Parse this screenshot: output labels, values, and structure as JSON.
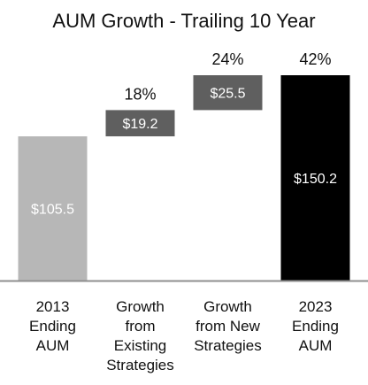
{
  "chart_data": {
    "type": "bar",
    "subtype": "waterfall",
    "title": "AUM Growth - Trailing 10 Year",
    "xlabel": "",
    "ylabel": "",
    "ylim": [
      0,
      150.2
    ],
    "grid": false,
    "legend": "none",
    "categories": [
      "2013 Ending AUM",
      "Growth from Existing Strategies",
      "Growth from New Strategies",
      "2023 Ending AUM"
    ],
    "category_lines": [
      [
        "2013",
        "Ending",
        "AUM"
      ],
      [
        "Growth",
        "from",
        "Existing",
        "Strategies"
      ],
      [
        "Growth",
        "from New",
        "Strategies"
      ],
      [
        "2023",
        "Ending",
        "AUM"
      ]
    ],
    "bars": [
      {
        "kind": "total",
        "start": 0,
        "end": 105.5,
        "value": 105.5,
        "label": "$105.5",
        "pct_label": "",
        "color": "#b7b7b7"
      },
      {
        "kind": "increase",
        "start": 105.5,
        "end": 124.7,
        "value": 19.2,
        "label": "$19.2",
        "pct_label": "18%",
        "color": "#5f5f5f"
      },
      {
        "kind": "increase",
        "start": 124.7,
        "end": 150.2,
        "value": 25.5,
        "label": "$25.5",
        "pct_label": "24%",
        "color": "#5f5f5f"
      },
      {
        "kind": "total",
        "start": 0,
        "end": 150.2,
        "value": 150.2,
        "label": "$150.2",
        "pct_label": "42%",
        "color": "#000000"
      }
    ],
    "colors": {
      "axis": "#8f8f8f",
      "value_label": "#ffffff",
      "text": "#111111"
    }
  }
}
